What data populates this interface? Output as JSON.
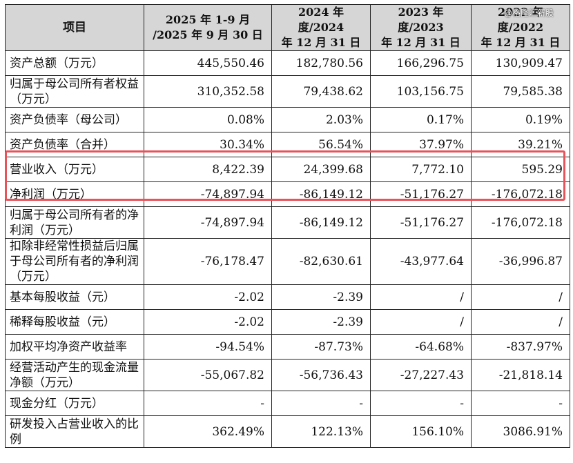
{
  "headers": [
    "项目",
    "2025 年 1-9 月\n/2025 年 9 月 30 日",
    "2024 年度/2024\n年 12 月 31 日",
    "2023 年度/2023\n年 12 月 31 日",
    "2022 年度/2022\n年 12 月 31 日"
  ],
  "rows": [
    {
      "label": "资产总额（万元）",
      "values": [
        "445,550.46",
        "182,780.56",
        "166,296.75",
        "130,909.47"
      ]
    },
    {
      "label": "归属于母公司所有者权益（万元）",
      "values": [
        "310,352.58",
        "79,438.62",
        "103,156.75",
        "79,585.38"
      ]
    },
    {
      "label": "资产负债率（母公司）",
      "values": [
        "0.08%",
        "2.03%",
        "0.17%",
        "0.19%"
      ]
    },
    {
      "label": "资产负债率（合并）",
      "values": [
        "30.34%",
        "56.54%",
        "37.97%",
        "39.21%"
      ]
    },
    {
      "label": "营业收入（万元）",
      "values": [
        "8,422.39",
        "24,399.68",
        "7,772.10",
        "595.29"
      ]
    },
    {
      "label": "净利润（万元）",
      "values": [
        "-74,897.94",
        "-86,149.12",
        "-51,176.27",
        "-176,072.18"
      ]
    },
    {
      "label": "归属于母公司所有者的净利润（万元）",
      "values": [
        "-74,897.94",
        "-86,149.12",
        "-51,176.27",
        "-176,072.18"
      ]
    },
    {
      "label": "扣除非经常性损益后归属于母公司所有者的净利润（万元）",
      "values": [
        "-76,178.47",
        "-82,630.61",
        "-43,977.64",
        "-36,996.87"
      ]
    },
    {
      "label": "基本每股收益（元）",
      "values": [
        "-2.02",
        "-2.39",
        "/",
        "/"
      ]
    },
    {
      "label": "稀释每股收益（元）",
      "values": [
        "-2.02",
        "-2.39",
        "/",
        "/"
      ]
    },
    {
      "label": "加权平均净资产收益率",
      "values": [
        "-94.54%",
        "-87.73%",
        "-64.68%",
        "-837.97%"
      ]
    },
    {
      "label": "经营活动产生的现金流量净额（万元）",
      "values": [
        "-55,067.82",
        "-56,736.43",
        "-27,227.43",
        "-21,818.14"
      ]
    },
    {
      "label": "现金分红（万元）",
      "values": [
        "-",
        "-",
        "-",
        "-"
      ]
    },
    {
      "label": "研发投入占营业收入的比例",
      "values": [
        "362.49%",
        "122.13%",
        "156.10%",
        "3086.91%"
      ]
    }
  ],
  "watermark": "@格隆汇新股",
  "highlight_color": "#e8535a"
}
